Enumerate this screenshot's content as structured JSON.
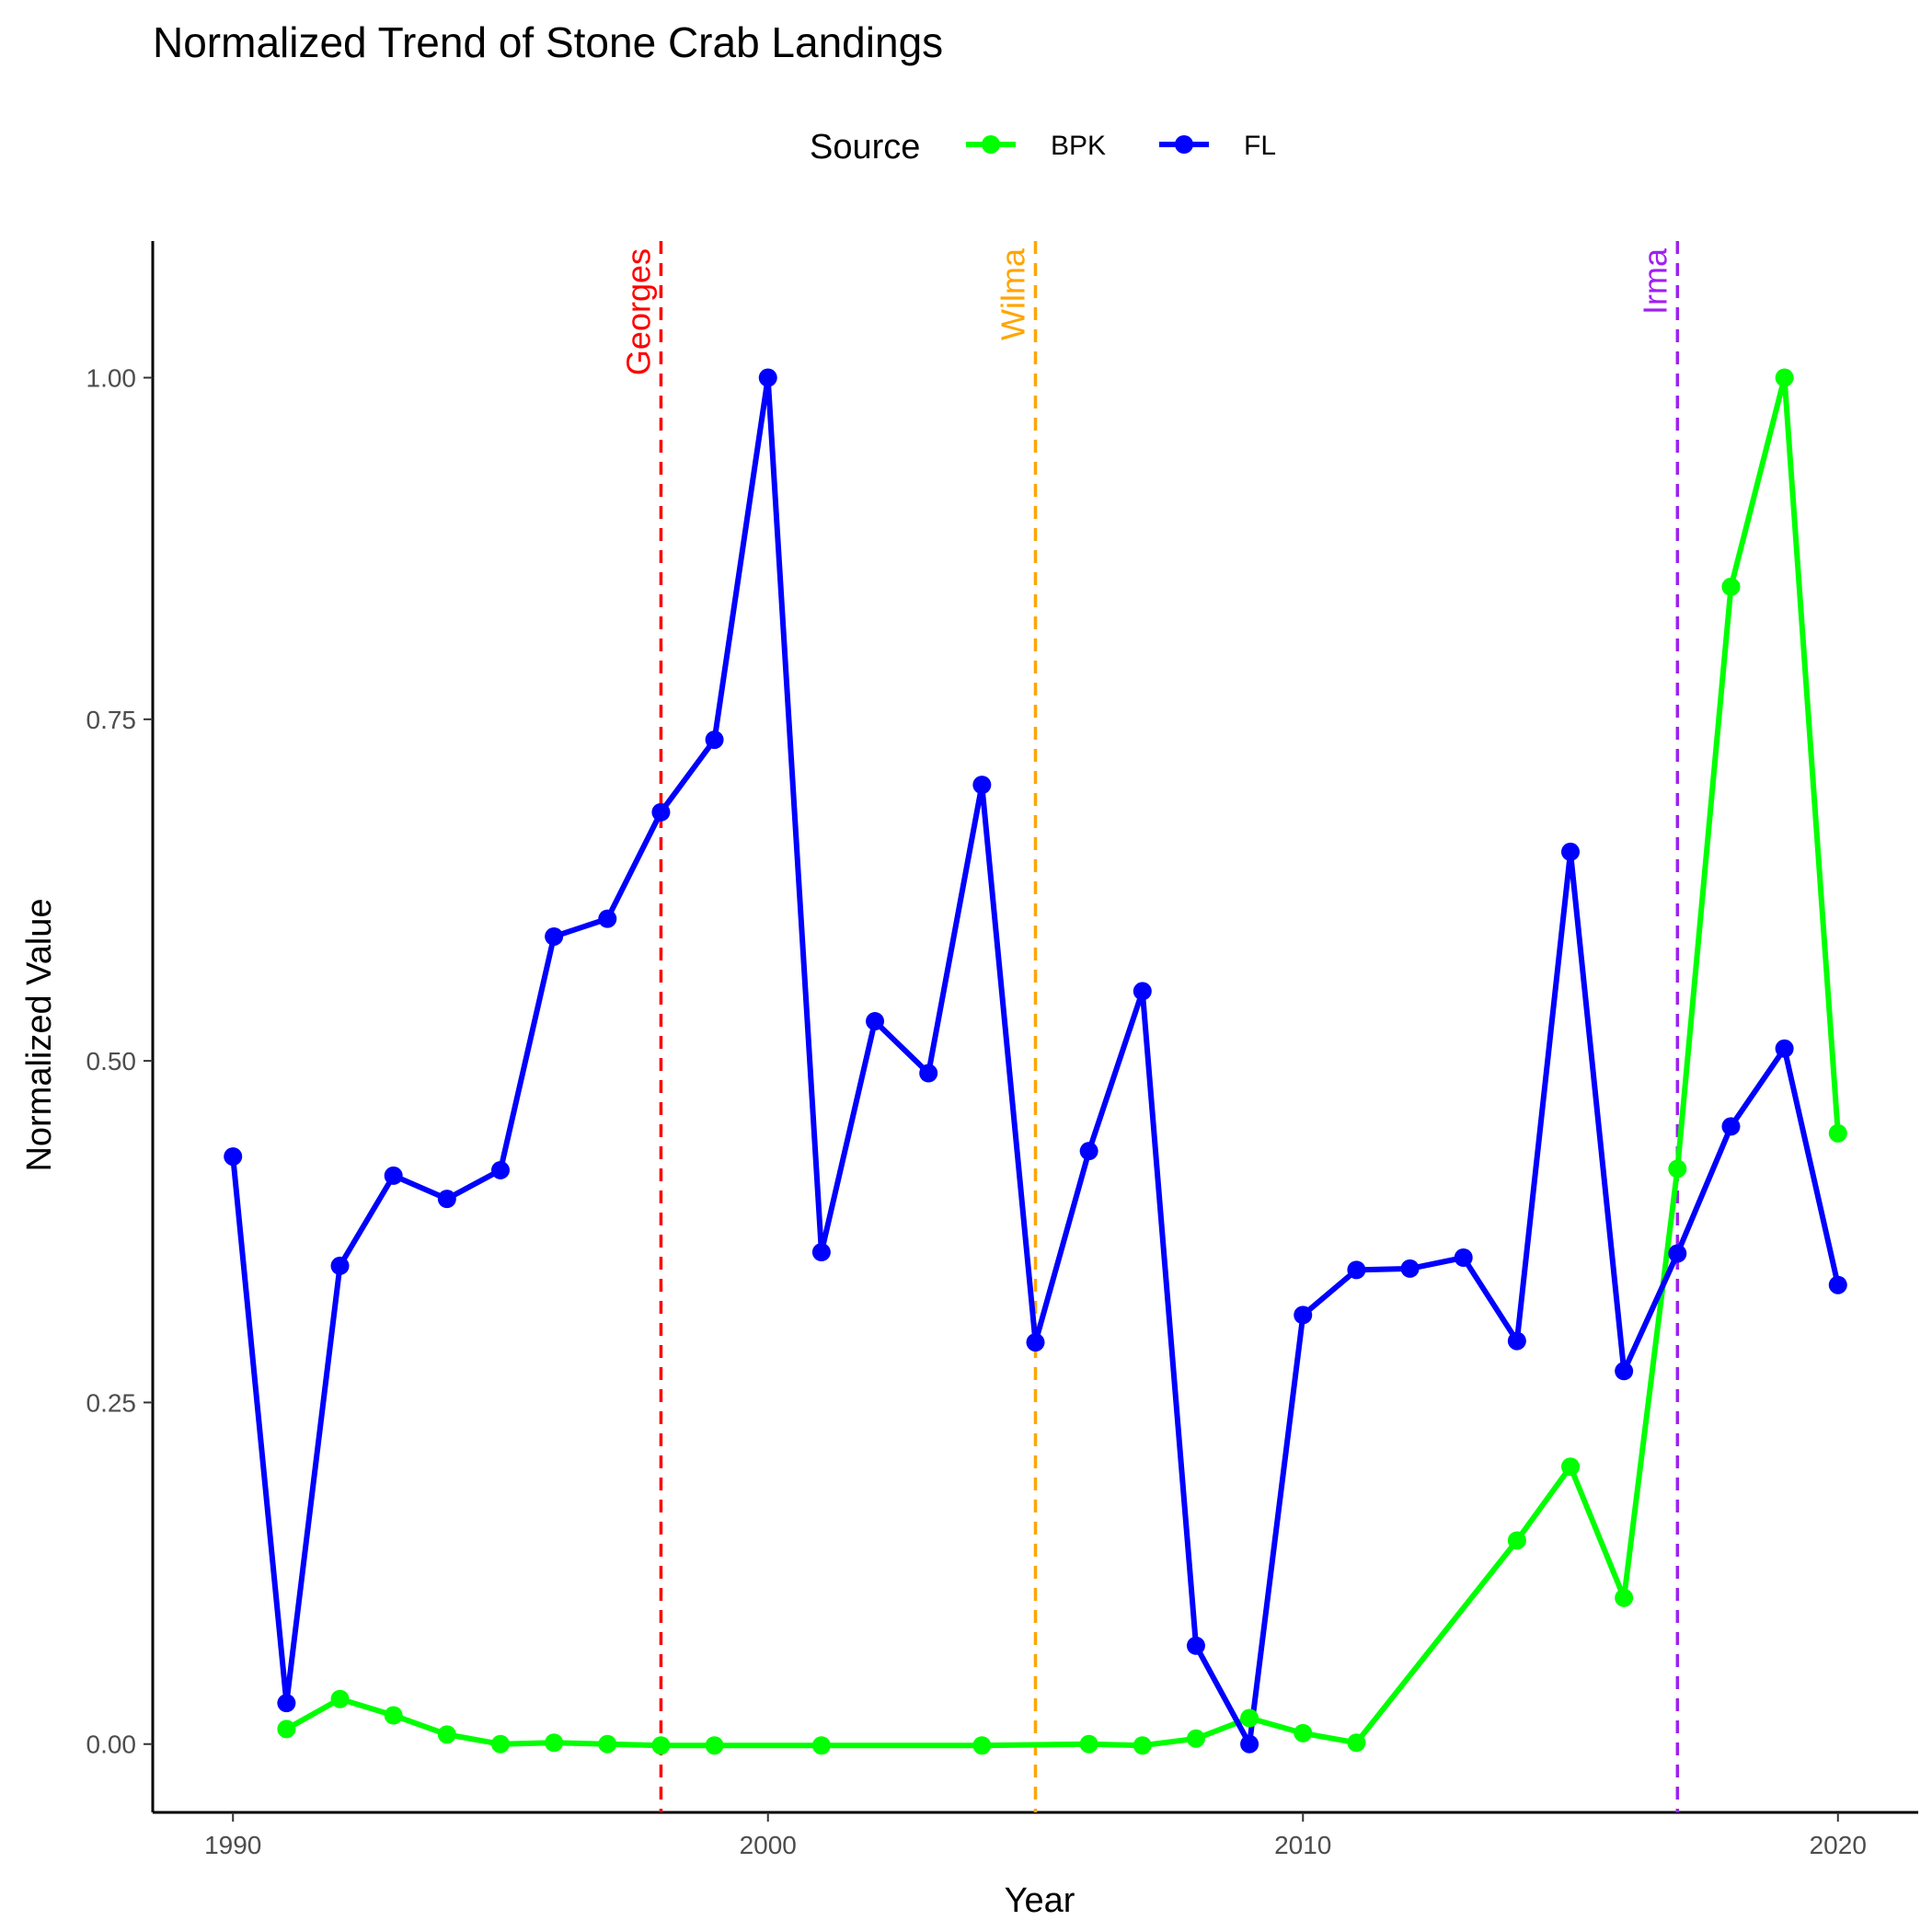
{
  "chart_data": {
    "type": "line",
    "title": "Normalized Trend of Stone Crab Landings",
    "xlabel": "Year",
    "ylabel": "Normalized Value",
    "xlim": [
      1988.5,
      2021.5
    ],
    "ylim": [
      -0.05,
      1.1
    ],
    "x_ticks": [
      1990,
      2000,
      2010,
      2020
    ],
    "x_tick_labels": [
      "1990",
      "2000",
      "2010",
      "2020"
    ],
    "y_ticks": [
      0,
      0.25,
      0.5,
      0.75,
      1.0
    ],
    "y_tick_labels": [
      "0.00",
      "0.25",
      "0.50",
      "0.75",
      "1.00"
    ],
    "grid": false,
    "legend": {
      "title": "Source",
      "position": "top",
      "entries": [
        "BPK",
        "FL"
      ]
    },
    "series": [
      {
        "name": "BPK",
        "color": "#00ff00",
        "points": [
          [
            1991,
            0.011
          ],
          [
            1992,
            0.033
          ],
          [
            1993,
            0.021
          ],
          [
            1994,
            0.007
          ],
          [
            1995,
            0.0
          ],
          [
            1996,
            0.001
          ],
          [
            1997,
            0.0
          ],
          [
            1998,
            -0.001
          ],
          [
            1999,
            -0.001
          ],
          [
            2001,
            -0.001
          ],
          [
            2004,
            -0.001
          ],
          [
            2006,
            0.0
          ],
          [
            2007,
            -0.001
          ],
          [
            2008,
            0.004
          ],
          [
            2009,
            0.019
          ],
          [
            2010,
            0.008
          ],
          [
            2011,
            0.001
          ],
          [
            2014,
            0.149
          ],
          [
            2015,
            0.203
          ],
          [
            2016,
            0.107
          ],
          [
            2017,
            0.421
          ],
          [
            2018,
            0.847
          ],
          [
            2019,
            1.0
          ],
          [
            2020,
            0.447
          ]
        ]
      },
      {
        "name": "FL",
        "color": "#0000ff",
        "points": [
          [
            1990,
            0.43
          ],
          [
            1991,
            0.03
          ],
          [
            1992,
            0.35
          ],
          [
            1993,
            0.416
          ],
          [
            1994,
            0.399
          ],
          [
            1995,
            0.42
          ],
          [
            1996,
            0.591
          ],
          [
            1997,
            0.604
          ],
          [
            1998,
            0.682
          ],
          [
            1999,
            0.735
          ],
          [
            2000,
            1.0
          ],
          [
            2001,
            0.36
          ],
          [
            2002,
            0.529
          ],
          [
            2003,
            0.491
          ],
          [
            2004,
            0.702
          ],
          [
            2005,
            0.294
          ],
          [
            2006,
            0.434
          ],
          [
            2007,
            0.551
          ],
          [
            2008,
            0.072
          ],
          [
            2009,
            0.0
          ],
          [
            2010,
            0.314
          ],
          [
            2011,
            0.347
          ],
          [
            2012,
            0.348
          ],
          [
            2013,
            0.356
          ],
          [
            2014,
            0.295
          ],
          [
            2015,
            0.653
          ],
          [
            2016,
            0.273
          ],
          [
            2017,
            0.359
          ],
          [
            2018,
            0.452
          ],
          [
            2019,
            0.509
          ],
          [
            2020,
            0.336
          ]
        ]
      }
    ],
    "events": [
      {
        "label": "Georges",
        "year": 1998,
        "color": "#ff0000"
      },
      {
        "label": "Wilma",
        "year": 2005,
        "color": "#ffa500"
      },
      {
        "label": "Irma",
        "year": 2017,
        "color": "#a020f0"
      }
    ]
  }
}
